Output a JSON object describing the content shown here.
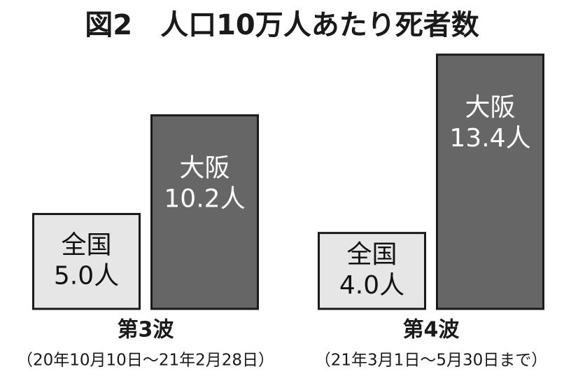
{
  "chart_data": {
    "type": "bar",
    "title": "図2　人口10万人あたり死者数",
    "categories": [
      "第3波",
      "第4波"
    ],
    "category_notes": [
      "（20年10月10日〜21年2月28日）",
      "（21年3月1日〜5月30日まで）"
    ],
    "series": [
      {
        "name": "全国",
        "color": "#e6e6e6",
        "values": [
          5.0,
          4.0
        ],
        "value_labels": [
          "5.0人",
          "4.0人"
        ],
        "text_color": "#111111"
      },
      {
        "name": "大阪",
        "color": "#666666",
        "values": [
          10.2,
          13.4
        ],
        "value_labels": [
          "10.2人",
          "13.4人"
        ],
        "text_color": "#ffffff"
      }
    ]
  }
}
